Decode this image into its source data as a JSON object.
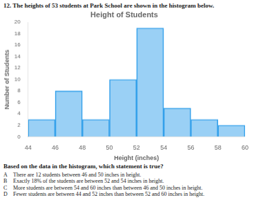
{
  "chart_data": {
    "type": "histogram",
    "title": "Height of Students",
    "xlabel": "Height (inches)",
    "ylabel": "Number of Students",
    "bins": [
      44,
      46,
      48,
      50,
      52,
      54,
      56,
      58,
      60
    ],
    "values": [
      3,
      8,
      3,
      10,
      19,
      5,
      3,
      2
    ],
    "xlim": [
      44,
      60
    ],
    "xticks": [
      44,
      46,
      48,
      50,
      52,
      54,
      56,
      58,
      60
    ],
    "ylim": [
      0,
      20
    ],
    "yticks": [
      0,
      2,
      4,
      6,
      8,
      10,
      12,
      14,
      16,
      18,
      20
    ],
    "grid": false,
    "annotations": [
      "12.  The heights of 53 students at Park School are shown in the histogram below.",
      "Based on the data in the histogram, which statement is true?",
      "A",
      "There are 12 students between 46 and 50 inches in height.",
      "B",
      "Exactly 18% of the students are between 52 and 54 inches in height.",
      "C",
      "More students are between 54 and 60 inches than between 46 and 50 inches in height.",
      "D",
      "Fewer students are between 44 and 52 inches than between 52 and 60 inches in height."
    ]
  }
}
